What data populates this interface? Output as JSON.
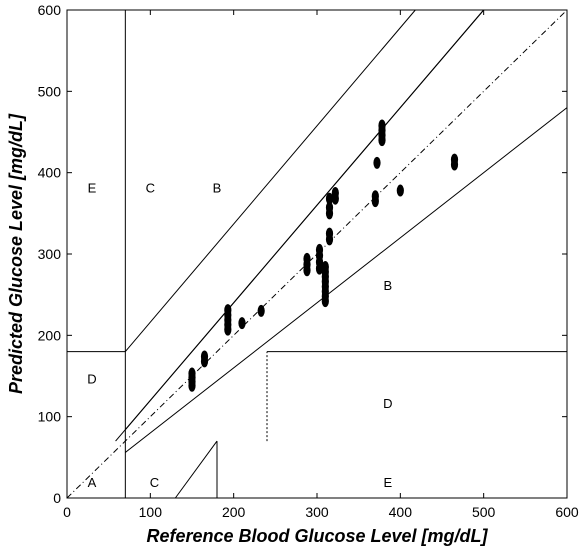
{
  "chart_data": {
    "type": "scatter",
    "title": "",
    "xlabel": "Reference Blood Glucose Level [mg/dL]",
    "ylabel": "Predicted Glucose Level [mg/dL]",
    "xlim": [
      0,
      600
    ],
    "ylim": [
      0,
      600
    ],
    "xticks": [
      "0",
      "100",
      "200",
      "300",
      "400",
      "500",
      "600"
    ],
    "yticks": [
      "0",
      "100",
      "200",
      "300",
      "400",
      "500",
      "600"
    ],
    "grid": false,
    "zone_labels": [
      {
        "text": "A",
        "x": 30,
        "y": 18
      },
      {
        "text": "C",
        "x": 100,
        "y": 380
      },
      {
        "text": "B",
        "x": 180,
        "y": 380
      },
      {
        "text": "E",
        "x": 30,
        "y": 380
      },
      {
        "text": "D",
        "x": 30,
        "y": 145
      },
      {
        "text": "B",
        "x": 385,
        "y": 260
      },
      {
        "text": "D",
        "x": 385,
        "y": 115
      },
      {
        "text": "C",
        "x": 105,
        "y": 18
      },
      {
        "text": "E",
        "x": 385,
        "y": 18
      }
    ],
    "points": [
      {
        "x": 150,
        "y": 138
      },
      {
        "x": 150,
        "y": 143
      },
      {
        "x": 150,
        "y": 148
      },
      {
        "x": 150,
        "y": 153
      },
      {
        "x": 165,
        "y": 168
      },
      {
        "x": 165,
        "y": 174
      },
      {
        "x": 193,
        "y": 207
      },
      {
        "x": 193,
        "y": 213
      },
      {
        "x": 193,
        "y": 219
      },
      {
        "x": 193,
        "y": 225
      },
      {
        "x": 193,
        "y": 231
      },
      {
        "x": 210,
        "y": 215
      },
      {
        "x": 233,
        "y": 230
      },
      {
        "x": 288,
        "y": 280
      },
      {
        "x": 288,
        "y": 287
      },
      {
        "x": 288,
        "y": 294
      },
      {
        "x": 303,
        "y": 282
      },
      {
        "x": 303,
        "y": 290
      },
      {
        "x": 303,
        "y": 298
      },
      {
        "x": 303,
        "y": 305
      },
      {
        "x": 310,
        "y": 242
      },
      {
        "x": 310,
        "y": 248
      },
      {
        "x": 310,
        "y": 254
      },
      {
        "x": 310,
        "y": 260
      },
      {
        "x": 310,
        "y": 266
      },
      {
        "x": 310,
        "y": 272
      },
      {
        "x": 310,
        "y": 278
      },
      {
        "x": 310,
        "y": 284
      },
      {
        "x": 315,
        "y": 318
      },
      {
        "x": 315,
        "y": 325
      },
      {
        "x": 315,
        "y": 350
      },
      {
        "x": 315,
        "y": 357
      },
      {
        "x": 315,
        "y": 368
      },
      {
        "x": 322,
        "y": 368
      },
      {
        "x": 322,
        "y": 375
      },
      {
        "x": 370,
        "y": 365
      },
      {
        "x": 370,
        "y": 371
      },
      {
        "x": 372,
        "y": 412
      },
      {
        "x": 378,
        "y": 440
      },
      {
        "x": 378,
        "y": 446
      },
      {
        "x": 378,
        "y": 452
      },
      {
        "x": 378,
        "y": 458
      },
      {
        "x": 400,
        "y": 378
      },
      {
        "x": 465,
        "y": 410
      },
      {
        "x": 465,
        "y": 416
      }
    ]
  }
}
